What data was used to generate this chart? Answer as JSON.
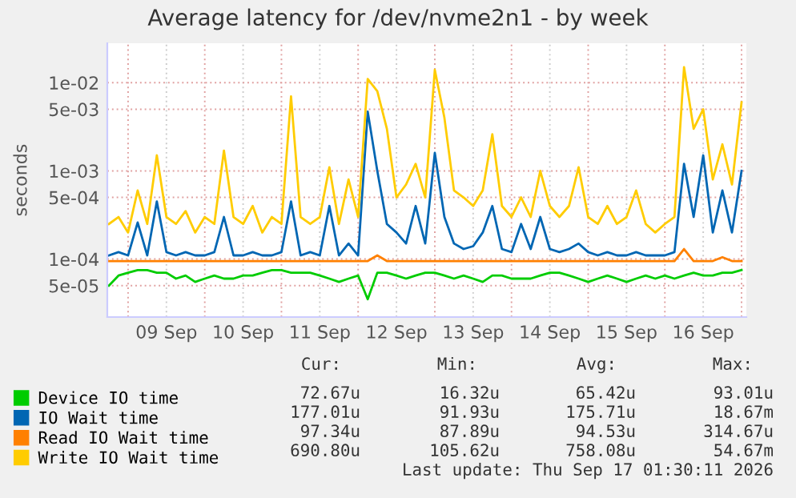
{
  "chart_data": {
    "type": "line",
    "title": "Average latency for /dev/nvme2n1 - by week",
    "ylabel": "seconds",
    "log": "y",
    "grid": true,
    "legend": "bottom left",
    "marker": "none",
    "line_style": "solid",
    "xlim": [
      "2026-09-08T17:30",
      "2026-09-17T01:30"
    ],
    "xticks": [
      {
        "value": "2026-09-09T00:00",
        "label": null
      },
      {
        "value": "2026-09-09T12:00",
        "label": "09 Sep"
      },
      {
        "value": "2026-09-10T00:00",
        "label": null
      },
      {
        "value": "2026-09-10T12:00",
        "label": "10 Sep"
      },
      {
        "value": "2026-09-11T00:00",
        "label": null
      },
      {
        "value": "2026-09-11T12:00",
        "label": "11 Sep"
      },
      {
        "value": "2026-09-12T00:00",
        "label": null
      },
      {
        "value": "2026-09-12T12:00",
        "label": "12 Sep"
      },
      {
        "value": "2026-09-13T00:00",
        "label": null
      },
      {
        "value": "2026-09-13T12:00",
        "label": "13 Sep"
      },
      {
        "value": "2026-09-14T00:00",
        "label": null
      },
      {
        "value": "2026-09-14T12:00",
        "label": "14 Sep"
      },
      {
        "value": "2026-09-15T00:00",
        "label": null
      },
      {
        "value": "2026-09-15T12:00",
        "label": "15 Sep"
      },
      {
        "value": "2026-09-16T00:00",
        "label": null
      },
      {
        "value": "2026-09-16T12:00",
        "label": "16 Sep"
      },
      {
        "value": "2026-09-17T00:00",
        "label": null
      }
    ],
    "ylim": [
      2.2e-05,
      0.028
    ],
    "yticks": [
      {
        "value": 5e-05,
        "label": "5e-05"
      },
      {
        "value": 0.0001,
        "label": "1e-04"
      },
      {
        "value": 0.0005,
        "label": "5e-04"
      },
      {
        "value": 0.001,
        "label": "1e-03"
      },
      {
        "value": 0.005,
        "label": "5e-03"
      },
      {
        "value": 0.01,
        "label": "1e-02"
      }
    ],
    "x": [
      "2026-09-08T18:00",
      "2026-09-08T21:00",
      "2026-09-09T00:00",
      "2026-09-09T03:00",
      "2026-09-09T06:00",
      "2026-09-09T09:00",
      "2026-09-09T12:00",
      "2026-09-09T15:00",
      "2026-09-09T18:00",
      "2026-09-09T21:00",
      "2026-09-10T00:00",
      "2026-09-10T03:00",
      "2026-09-10T06:00",
      "2026-09-10T09:00",
      "2026-09-10T12:00",
      "2026-09-10T15:00",
      "2026-09-10T18:00",
      "2026-09-10T21:00",
      "2026-09-11T00:00",
      "2026-09-11T03:00",
      "2026-09-11T06:00",
      "2026-09-11T09:00",
      "2026-09-11T12:00",
      "2026-09-11T15:00",
      "2026-09-11T18:00",
      "2026-09-11T21:00",
      "2026-09-12T00:00",
      "2026-09-12T03:00",
      "2026-09-12T06:00",
      "2026-09-12T09:00",
      "2026-09-12T12:00",
      "2026-09-12T15:00",
      "2026-09-12T18:00",
      "2026-09-12T21:00",
      "2026-09-13T00:00",
      "2026-09-13T03:00",
      "2026-09-13T06:00",
      "2026-09-13T09:00",
      "2026-09-13T12:00",
      "2026-09-13T15:00",
      "2026-09-13T18:00",
      "2026-09-13T21:00",
      "2026-09-14T00:00",
      "2026-09-14T03:00",
      "2026-09-14T06:00",
      "2026-09-14T09:00",
      "2026-09-14T12:00",
      "2026-09-14T15:00",
      "2026-09-14T18:00",
      "2026-09-14T21:00",
      "2026-09-15T00:00",
      "2026-09-15T03:00",
      "2026-09-15T06:00",
      "2026-09-15T09:00",
      "2026-09-15T12:00",
      "2026-09-15T15:00",
      "2026-09-15T18:00",
      "2026-09-15T21:00",
      "2026-09-16T00:00",
      "2026-09-16T03:00",
      "2026-09-16T06:00",
      "2026-09-16T09:00",
      "2026-09-16T12:00",
      "2026-09-16T15:00",
      "2026-09-16T18:00",
      "2026-09-16T21:00",
      "2026-09-17T00:00"
    ],
    "series": [
      {
        "name": "Device IO time",
        "color": "#00cc00",
        "values": [
          5e-05,
          6.5e-05,
          7e-05,
          7.5e-05,
          7.5e-05,
          7e-05,
          7e-05,
          6e-05,
          6.5e-05,
          5.5e-05,
          6e-05,
          6.5e-05,
          6e-05,
          6e-05,
          6.5e-05,
          6.5e-05,
          7e-05,
          7.5e-05,
          7.5e-05,
          7e-05,
          7e-05,
          7e-05,
          6.5e-05,
          6e-05,
          5.5e-05,
          6e-05,
          6.5e-05,
          3.5e-05,
          7e-05,
          7e-05,
          6.5e-05,
          6e-05,
          6.5e-05,
          7e-05,
          7e-05,
          6.5e-05,
          6e-05,
          6.5e-05,
          6e-05,
          5.5e-05,
          6.5e-05,
          6.5e-05,
          6e-05,
          6e-05,
          6e-05,
          6.5e-05,
          7e-05,
          7e-05,
          6.5e-05,
          6e-05,
          5.5e-05,
          6e-05,
          6.5e-05,
          6e-05,
          5.5e-05,
          6e-05,
          6.5e-05,
          6e-05,
          6.5e-05,
          6e-05,
          6.5e-05,
          7e-05,
          6.5e-05,
          6.5e-05,
          7e-05,
          7e-05,
          7.5e-05
        ]
      },
      {
        "name": "IO Wait time",
        "color": "#0066b3",
        "values": [
          0.00011,
          0.00012,
          0.00011,
          0.00026,
          0.00011,
          0.00045,
          0.00012,
          0.00011,
          0.00012,
          0.00011,
          0.00011,
          0.00012,
          0.0003,
          0.00011,
          0.00011,
          0.00012,
          0.00011,
          0.00011,
          0.00012,
          0.00045,
          0.00011,
          0.00012,
          0.00011,
          0.0004,
          0.00011,
          0.00015,
          0.00011,
          0.0047,
          0.001,
          0.00025,
          0.0002,
          0.00015,
          0.0004,
          0.00015,
          0.0016,
          0.0003,
          0.00015,
          0.00013,
          0.00014,
          0.0002,
          0.0004,
          0.00013,
          0.00012,
          0.00025,
          0.00013,
          0.0003,
          0.00013,
          0.00012,
          0.00013,
          0.00015,
          0.00012,
          0.00011,
          0.00012,
          0.00011,
          0.00011,
          0.00012,
          0.00011,
          0.00011,
          0.00011,
          0.00012,
          0.0012,
          0.0003,
          0.0015,
          0.0002,
          0.0006,
          0.0002,
          0.001
        ]
      },
      {
        "name": "Read IO Wait time",
        "color": "#ff8000",
        "values": [
          9.5e-05,
          9.5e-05,
          9.5e-05,
          9.5e-05,
          9.5e-05,
          9.5e-05,
          9.5e-05,
          9.5e-05,
          9.5e-05,
          9.5e-05,
          9.5e-05,
          9.5e-05,
          9.5e-05,
          9.5e-05,
          9.5e-05,
          9.5e-05,
          9.5e-05,
          9.5e-05,
          9.5e-05,
          9.5e-05,
          9.5e-05,
          9.5e-05,
          9.5e-05,
          9.5e-05,
          9.5e-05,
          9.5e-05,
          9.5e-05,
          9.5e-05,
          0.00011,
          9.5e-05,
          9.5e-05,
          9.5e-05,
          9.5e-05,
          9.5e-05,
          9.5e-05,
          9.5e-05,
          9.5e-05,
          9.5e-05,
          9.5e-05,
          9.5e-05,
          9.5e-05,
          9.5e-05,
          9.5e-05,
          9.5e-05,
          9.5e-05,
          9.5e-05,
          9.5e-05,
          9.5e-05,
          9.5e-05,
          9.5e-05,
          9.5e-05,
          9.5e-05,
          9.5e-05,
          9.5e-05,
          9.5e-05,
          9.5e-05,
          9.5e-05,
          9.5e-05,
          9.5e-05,
          9.5e-05,
          0.00013,
          9.5e-05,
          9.5e-05,
          9.5e-05,
          0.000105,
          9.5e-05,
          9.5e-05
        ]
      },
      {
        "name": "Write IO Wait time",
        "color": "#ffcc00",
        "values": [
          0.00025,
          0.0003,
          0.0002,
          0.0006,
          0.00025,
          0.0015,
          0.0003,
          0.00025,
          0.00035,
          0.0002,
          0.0003,
          0.00025,
          0.0017,
          0.0003,
          0.00025,
          0.0004,
          0.0002,
          0.0003,
          0.00025,
          0.007,
          0.0003,
          0.00025,
          0.0003,
          0.0011,
          0.00025,
          0.0008,
          0.0003,
          0.011,
          0.008,
          0.003,
          0.0005,
          0.0007,
          0.0012,
          0.0005,
          0.014,
          0.004,
          0.0006,
          0.0005,
          0.0004,
          0.0006,
          0.0026,
          0.0004,
          0.0003,
          0.0005,
          0.0003,
          0.001,
          0.0004,
          0.0003,
          0.0004,
          0.0011,
          0.0003,
          0.00025,
          0.0004,
          0.00025,
          0.0003,
          0.0006,
          0.00025,
          0.0002,
          0.00025,
          0.0003,
          0.015,
          0.003,
          0.005,
          0.0008,
          0.002,
          0.0007,
          0.006
        ]
      }
    ],
    "annotations": [
      "Cur:",
      "Min:",
      "Avg:",
      "Max:",
      "72.67u",
      "16.32u",
      "65.42u",
      "93.01u",
      "177.01u",
      "91.93u",
      "175.71u",
      "18.67m",
      "97.34u",
      "87.89u",
      "94.53u",
      "314.67u",
      "690.80u",
      "105.62u",
      "758.08u",
      "54.67m",
      "Last update: Thu Sep 17 01:30:11 2026"
    ]
  }
}
